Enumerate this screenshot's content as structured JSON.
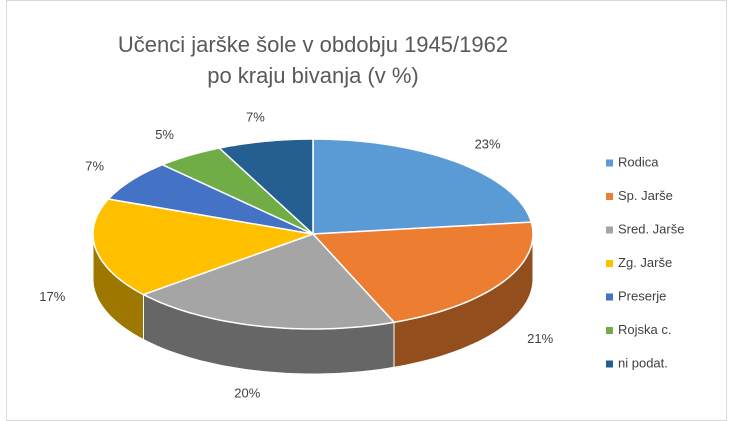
{
  "chart_data": {
    "type": "pie3d",
    "title": [
      "Učenci jarške šole v obdobju 1945/1962",
      "po kraju bivanja (v %)"
    ],
    "categories": [
      "Rodica",
      "Sp. Jarše",
      "Sred. Jarše",
      "Zg. Jarše",
      "Preserje",
      "Rojska c.",
      "ni podat."
    ],
    "values": [
      23,
      21,
      20,
      17,
      7,
      5,
      7
    ],
    "value_labels": [
      "23%",
      "21%",
      "20%",
      "17%",
      "7%",
      "5%",
      "7%"
    ],
    "colors": [
      "#5b9bd5",
      "#ed7d31",
      "#a5a5a5",
      "#ffc000",
      "#4472c4",
      "#70ad47",
      "#255e91"
    ],
    "legend": "right"
  }
}
